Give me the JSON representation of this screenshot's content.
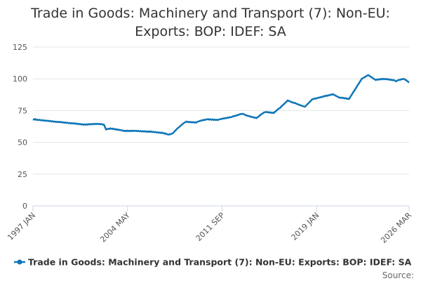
{
  "chart_data": {
    "type": "line",
    "title": "Trade in Goods: Machinery and Transport (7): Non-EU: Exports: BOP: IDEF: SA",
    "source_label": "Source:",
    "categories": [
      "1997 JAN",
      null,
      null,
      null,
      null,
      null,
      null,
      null,
      null,
      null,
      null,
      null,
      null,
      null,
      null,
      null,
      null,
      null,
      null,
      null,
      null,
      null,
      null,
      null,
      null,
      null,
      null,
      null,
      null,
      null,
      null,
      null,
      null,
      null,
      null,
      null,
      null,
      null,
      null,
      null,
      null,
      null,
      null,
      null,
      null,
      null,
      null,
      null,
      null,
      null,
      null,
      null,
      null,
      null,
      null,
      null,
      null,
      null,
      null,
      null,
      null,
      null,
      null,
      null,
      null,
      null,
      null,
      null,
      null,
      null,
      null,
      null,
      null,
      null,
      null,
      null,
      null,
      null,
      null,
      null,
      null,
      null,
      null,
      null,
      null,
      null,
      null,
      null,
      "2004 MAY",
      null,
      null,
      null,
      null,
      null,
      null,
      null,
      null,
      null,
      null,
      null,
      null,
      null,
      null,
      null,
      null,
      null,
      null,
      null,
      null,
      null,
      null,
      null,
      null,
      null,
      null,
      null,
      null,
      null,
      null,
      null,
      null,
      null,
      null,
      null,
      null,
      null,
      null,
      null,
      null,
      null,
      null,
      null,
      null,
      null,
      null,
      null,
      null,
      null,
      null,
      null,
      null,
      null,
      null,
      null,
      null,
      null,
      null,
      null,
      null,
      null,
      null,
      null,
      null,
      null,
      null,
      null,
      null,
      null,
      null,
      null,
      null,
      null,
      null,
      null,
      null,
      null,
      null,
      null,
      null,
      null,
      null,
      null,
      null,
      null,
      null,
      null,
      "2011 SEP",
      null,
      null,
      null,
      null,
      null,
      null,
      null,
      null,
      null,
      null,
      null,
      null,
      null,
      null,
      null,
      null,
      null,
      null,
      null,
      null,
      null,
      null,
      null,
      null,
      null,
      null,
      null,
      null,
      null,
      null,
      null,
      null,
      null,
      null,
      null,
      null,
      null,
      null,
      null,
      null,
      null,
      null,
      null,
      null,
      null,
      null,
      null,
      null,
      null,
      null,
      null,
      null,
      null,
      null,
      null,
      null,
      null,
      null,
      null,
      null,
      null,
      null,
      null,
      null,
      null,
      null,
      null,
      null,
      null,
      null,
      null,
      null,
      null,
      null,
      null,
      null,
      null,
      null,
      null,
      null,
      null,
      null,
      null,
      null,
      null,
      null,
      null,
      "2019 JAN",
      null,
      null,
      null,
      null,
      null,
      null,
      null,
      null,
      null,
      null,
      null,
      null,
      null,
      null,
      null,
      null,
      null,
      null,
      null,
      null,
      null,
      null,
      null,
      null,
      null,
      null,
      null,
      null,
      null,
      null,
      null,
      null,
      null,
      null,
      null,
      null,
      null,
      null,
      null,
      null,
      null,
      null,
      null,
      null,
      null,
      null,
      null,
      null,
      null,
      null,
      null,
      null,
      null,
      null,
      null,
      null,
      null,
      null,
      null,
      null,
      null,
      null,
      null,
      null,
      null,
      null,
      null,
      null,
      null,
      null,
      null,
      null,
      null,
      null,
      null,
      null,
      null,
      null,
      null,
      null,
      null,
      null,
      null,
      null,
      null,
      "2026 MAR"
    ],
    "series": [
      {
        "name": "Trade in Goods: Machinery and Transport (7): Non-EU: Exports: BOP: IDEF: SA",
        "color": "#0f76b8",
        "values": [
          68.2,
          67.8,
          68.4,
          67.6,
          67.9,
          67.5,
          67.8,
          67.3,
          67.6,
          67.1,
          67.4,
          66.9,
          67.2,
          66.8,
          67.1,
          66.6,
          66.9,
          66.4,
          66.7,
          66.2,
          66.5,
          66.0,
          66.3,
          65.8,
          66.2,
          65.8,
          66.1,
          65.6,
          65.9,
          65.4,
          65.7,
          65.2,
          65.5,
          65.0,
          65.3,
          64.8,
          65.2,
          64.8,
          65.1,
          64.6,
          64.9,
          64.4,
          64.7,
          64.2,
          64.5,
          64.0,
          64.3,
          63.8,
          64.2,
          63.8,
          64.3,
          63.9,
          64.4,
          64.0,
          64.5,
          64.1,
          64.6,
          64.2,
          64.7,
          64.3,
          64.7,
          64.2,
          64.6,
          64.1,
          64.4,
          63.9,
          64.0,
          62.0,
          60.0,
          60.5,
          60.8,
          60.4,
          61.1,
          60.6,
          60.9,
          60.3,
          60.6,
          60.0,
          60.3,
          59.8,
          60.0,
          59.5,
          59.7,
          59.2,
          59.3,
          58.8,
          59.2,
          58.7,
          59.3,
          58.8,
          59.2,
          58.7,
          59.3,
          58.8,
          59.2,
          58.9,
          59.2,
          58.7,
          59.1,
          58.6,
          59.0,
          58.5,
          58.9,
          58.4,
          58.8,
          58.3,
          58.7,
          58.2,
          58.7,
          58.2,
          58.6,
          58.0,
          58.4,
          57.9,
          58.2,
          57.7,
          58.0,
          57.5,
          57.8,
          57.3,
          57.7,
          57.1,
          57.3,
          56.7,
          56.9,
          56.3,
          56.0,
          56.4,
          56.3,
          56.9,
          57.0,
          57.8,
          58.9,
          59.6,
          60.7,
          61.3,
          62.0,
          62.8,
          63.5,
          64.2,
          64.9,
          65.5,
          66.0,
          66.4,
          65.8,
          66.2,
          65.7,
          66.1,
          65.6,
          66.0,
          65.5,
          65.9,
          65.5,
          66.2,
          66.4,
          66.8,
          66.9,
          67.4,
          67.2,
          67.8,
          67.5,
          68.1,
          68.0,
          68.3,
          67.8,
          68.2,
          67.7,
          68.1,
          67.6,
          68.0,
          67.5,
          67.9,
          67.5,
          68.0,
          68.1,
          68.5,
          68.4,
          68.9,
          68.7,
          69.2,
          69.0,
          69.5,
          69.3,
          69.8,
          69.7,
          70.0,
          70.5,
          70.4,
          71.0,
          70.9,
          71.5,
          71.4,
          72.0,
          72.3,
          72.1,
          72.5,
          72.2,
          71.9,
          71.2,
          71.3,
          70.7,
          70.8,
          70.2,
          70.3,
          69.8,
          69.9,
          69.3,
          69.5,
          69.0,
          69.8,
          70.2,
          71.3,
          71.6,
          72.5,
          72.8,
          73.6,
          73.7,
          74.0,
          73.5,
          73.9,
          73.3,
          73.7,
          73.1,
          73.4,
          73.0,
          74.0,
          74.4,
          75.5,
          75.9,
          76.8,
          77.0,
          78.2,
          78.9,
          79.7,
          80.4,
          81.3,
          82.0,
          83.0,
          82.6,
          82.3,
          82.0,
          81.4,
          81.5,
          80.9,
          81.0,
          80.4,
          80.2,
          79.7,
          79.5,
          79.1,
          78.9,
          78.5,
          78.3,
          78.0,
          78.8,
          79.7,
          80.5,
          81.4,
          82.2,
          83.1,
          84.0,
          84.0,
          84.5,
          84.3,
          84.9,
          84.8,
          85.3,
          85.2,
          85.8,
          85.6,
          86.0,
          86.5,
          86.2,
          86.9,
          86.6,
          87.2,
          87.0,
          87.6,
          87.4,
          88.0,
          87.4,
          87.1,
          86.5,
          86.2,
          85.6,
          85.4,
          85.0,
          85.3,
          84.8,
          85.1,
          84.5,
          84.8,
          84.2,
          84.5,
          84.0,
          85.3,
          86.7,
          88.0,
          89.4,
          90.7,
          92.0,
          93.3,
          94.7,
          96.0,
          97.3,
          98.7,
          100.0,
          100.5,
          101.0,
          101.5,
          102.0,
          102.5,
          103.0,
          102.4,
          101.8,
          101.3,
          100.7,
          100.1,
          99.6,
          99.0,
          99.5,
          99.2,
          99.8,
          99.4,
          100.0,
          99.5,
          100.1,
          99.6,
          100.0,
          99.5,
          99.9,
          99.3,
          99.6,
          99.0,
          99.3,
          98.8,
          99.0,
          98.5,
          98.0,
          98.6,
          98.9,
          99.3,
          99.2,
          99.8,
          99.6,
          100.0,
          99.5,
          99.0,
          98.5,
          97.8,
          97.0
        ]
      }
    ],
    "ylim": [
      0,
      125
    ],
    "yticks": [
      0,
      25,
      50,
      75,
      100,
      125
    ],
    "grid": true
  }
}
